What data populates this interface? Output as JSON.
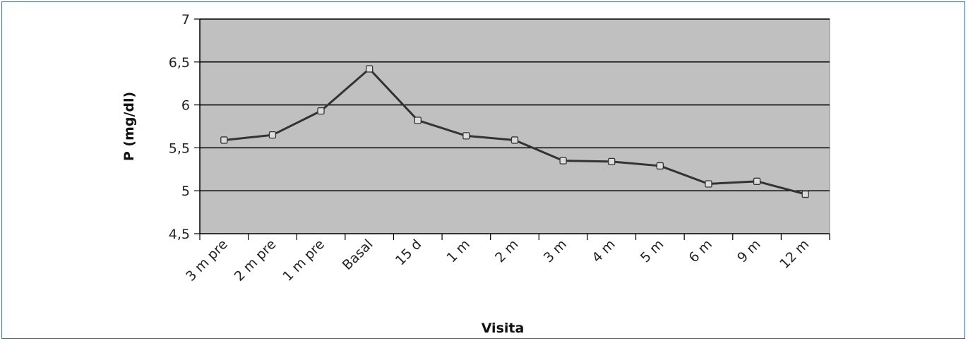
{
  "chart_data": {
    "type": "line",
    "title": "",
    "xlabel": "Visita",
    "ylabel": "P (mg/dl)",
    "categories": [
      "3 m pre",
      "2 m pre",
      "1 m pre",
      "Basal",
      "15 d",
      "1 m",
      "2 m",
      "3 m",
      "4 m",
      "5 m",
      "6 m",
      "9 m",
      "12 m"
    ],
    "series": [
      {
        "values": [
          5.59,
          5.65,
          5.93,
          6.42,
          5.82,
          5.64,
          5.59,
          5.35,
          5.34,
          5.29,
          5.08,
          5.11,
          4.96
        ]
      }
    ],
    "ylim": [
      4.5,
      7
    ],
    "yticks": [
      4.5,
      5,
      5.5,
      6,
      6.5,
      7
    ],
    "ytick_labels": [
      "4,5",
      "5",
      "5,5",
      "6",
      "6,5",
      "7"
    ],
    "grid": true,
    "colors": {
      "plot_bg": "#c0c0c0",
      "line": "#333333",
      "marker_fill": "#dddddd",
      "frame": "#4a6fa5"
    }
  }
}
